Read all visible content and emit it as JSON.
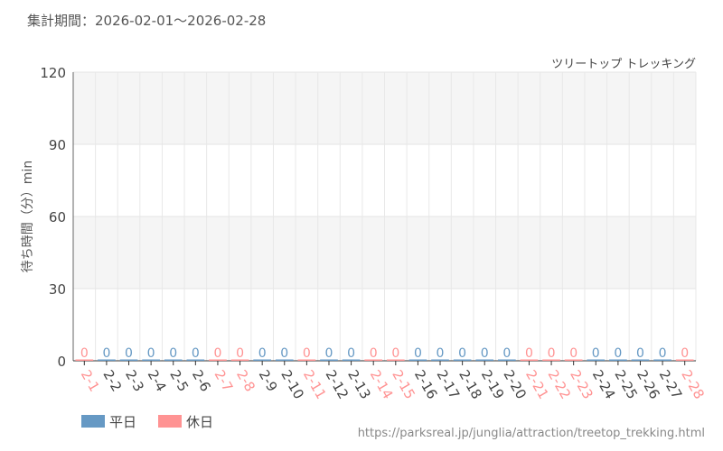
{
  "header": {
    "period": "集計期間：2026-02-01～2026-02-28",
    "attraction": "ツリートップ トレッキング"
  },
  "footer": {
    "url": "https://parksreal.jp/junglia/attraction/treetop_trekking.html"
  },
  "chart_data": {
    "type": "bar",
    "ylabel": "待ち時間（分）min",
    "ylim": [
      0,
      120
    ],
    "yticks": [
      0,
      30,
      60,
      90,
      120
    ],
    "grid": true,
    "legend_placement": "bottom-left",
    "categories": [
      "2-1",
      "2-2",
      "2-3",
      "2-4",
      "2-5",
      "2-6",
      "2-7",
      "2-8",
      "2-9",
      "2-10",
      "2-11",
      "2-12",
      "2-13",
      "2-14",
      "2-15",
      "2-16",
      "2-17",
      "2-18",
      "2-19",
      "2-20",
      "2-21",
      "2-22",
      "2-23",
      "2-24",
      "2-25",
      "2-26",
      "2-27",
      "2-28"
    ],
    "values": [
      0,
      0,
      0,
      0,
      0,
      0,
      0,
      0,
      0,
      0,
      0,
      0,
      0,
      0,
      0,
      0,
      0,
      0,
      0,
      0,
      0,
      0,
      0,
      0,
      0,
      0,
      0,
      0
    ],
    "day_type": [
      "h",
      "w",
      "w",
      "w",
      "w",
      "w",
      "h",
      "h",
      "w",
      "w",
      "h",
      "w",
      "w",
      "h",
      "h",
      "w",
      "w",
      "w",
      "w",
      "w",
      "h",
      "h",
      "h",
      "w",
      "w",
      "w",
      "w",
      "h"
    ],
    "series": [
      {
        "name": "平日",
        "color": "#6699c4"
      },
      {
        "name": "休日",
        "color": "#ff9393"
      }
    ]
  }
}
